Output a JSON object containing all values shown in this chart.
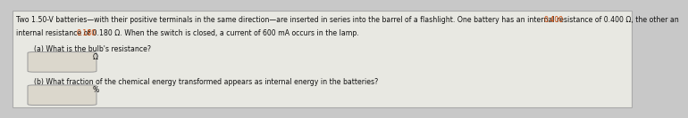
{
  "bg_color": "#c8c8c8",
  "panel_color": "#e8e8e2",
  "text_color": "#111111",
  "highlight_color": "#cc4400",
  "line1": "Two 1.50-V batteries—with their positive terminals in the same direction—are inserted in series into the barrel of a flashlight. One battery has an internal resistance of 0.400 Ω, the other an",
  "line2": "internal resistance of 0.180 Ω. When the switch is closed, a current of 600 mA occurs in the lamp.",
  "part_a_label": "(a) What is the bulb's resistance?",
  "part_a_unit": "Ω",
  "part_b_label": "(b) What fraction of the chemical energy transformed appears as internal energy in the batteries?",
  "part_b_unit": "%",
  "box_facecolor": "#dbd7cc",
  "box_edgecolor": "#999999",
  "font_size_main": 5.6,
  "font_size_parts": 5.6
}
